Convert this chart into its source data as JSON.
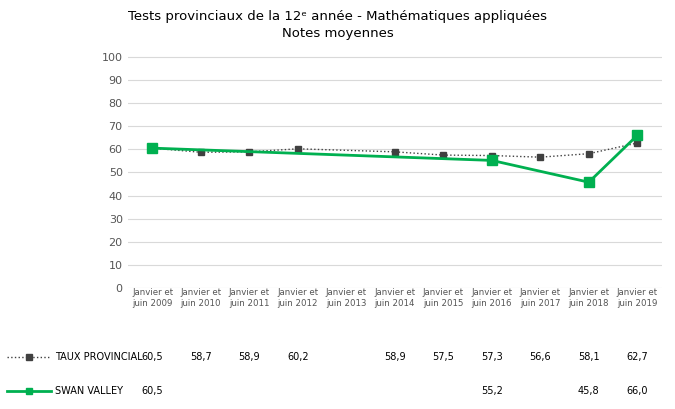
{
  "title_line1": "Tests provinciaux de la 12ᵉ année - Mathématiques appliquées",
  "title_line2": "Notes moyennes",
  "x_labels": [
    "Janvier et\njuin 2009",
    "Janvier et\njuin 2010",
    "Janvier et\njuin 2011",
    "Janvier et\njuin 2012",
    "Janvier et\njuin 2013",
    "Janvier et\njuin 2014",
    "Janvier et\njuin 2015",
    "Janvier et\njuin 2016",
    "Janvier et\njuin 2017",
    "Janvier et\njuin 2018",
    "Janvier et\njuin 2019"
  ],
  "provincial_values": [
    60.5,
    58.7,
    58.9,
    60.2,
    null,
    58.9,
    57.5,
    57.3,
    56.6,
    58.1,
    62.7
  ],
  "swan_valley_values": [
    60.5,
    null,
    null,
    null,
    null,
    null,
    null,
    55.2,
    null,
    45.8,
    66.0
  ],
  "provincial_color": "#404040",
  "swan_valley_color": "#00b050",
  "provincial_label": "TAUX PROVINCIAL",
  "swan_valley_label": "SWAN VALLEY",
  "yticks": [
    0,
    10,
    20,
    30,
    40,
    50,
    60,
    70,
    80,
    90,
    100
  ],
  "ylim": [
    0,
    105
  ],
  "background_color": "#ffffff",
  "grid_color": "#d9d9d9",
  "table_provincial": [
    "60,5",
    "58,7",
    "58,9",
    "60,2",
    "",
    "58,9",
    "57,5",
    "57,3",
    "56,6",
    "58,1",
    "62,7"
  ],
  "table_swan_valley": [
    "60,5",
    "",
    "",
    "",
    "",
    "",
    "",
    "55,2",
    "",
    "45,8",
    "66,0"
  ]
}
